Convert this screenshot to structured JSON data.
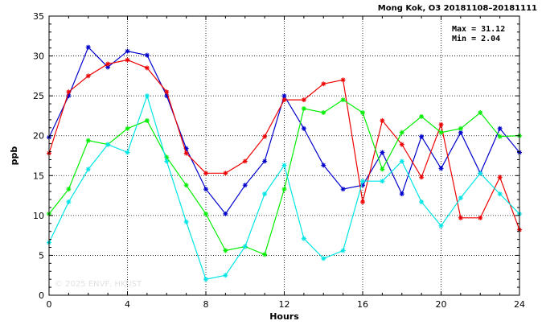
{
  "chart_data": {
    "type": "line",
    "title": "Mong Kok, O3 20181108–20181111",
    "xlabel": "Hours",
    "ylabel": "ppb",
    "xlim": [
      0,
      24
    ],
    "ylim": [
      0,
      35
    ],
    "x_ticks": [
      0,
      4,
      8,
      12,
      16,
      20,
      24
    ],
    "y_ticks": [
      0,
      5,
      10,
      15,
      20,
      25,
      30,
      35
    ],
    "grid": true,
    "stats": {
      "max_label": "Max = 31.12",
      "min_label": "Min =  2.04"
    },
    "watermark": "© 2025  ENVF, HKUST",
    "x": [
      0,
      1,
      2,
      3,
      4,
      5,
      6,
      7,
      8,
      9,
      10,
      11,
      12,
      13,
      14,
      15,
      16,
      17,
      18,
      19,
      20,
      21,
      22,
      23,
      24
    ],
    "series": [
      {
        "color": "#0000cc",
        "values": [
          19.8,
          25.0,
          31.1,
          28.6,
          30.6,
          30.1,
          25.0,
          18.4,
          13.3,
          10.2,
          13.8,
          16.8,
          25.0,
          20.9,
          16.3,
          13.3,
          13.8,
          17.9,
          12.7,
          19.9,
          15.9,
          20.4,
          15.3,
          20.9,
          17.9
        ]
      },
      {
        "color": "#ee0000",
        "values": [
          17.8,
          25.5,
          27.5,
          29.0,
          29.5,
          28.5,
          25.5,
          17.8,
          15.3,
          15.3,
          16.8,
          19.9,
          24.5,
          24.5,
          26.5,
          27.0,
          11.7,
          21.9,
          18.9,
          14.8,
          21.4,
          9.7,
          9.7,
          14.8,
          8.2
        ]
      },
      {
        "color": "#00ee00",
        "values": [
          10.2,
          13.3,
          19.4,
          18.9,
          20.9,
          21.9,
          17.3,
          13.8,
          10.2,
          5.6,
          6.1,
          5.1,
          13.3,
          23.4,
          22.9,
          24.5,
          22.9,
          15.8,
          20.4,
          22.4,
          20.4,
          20.9,
          22.9,
          19.9,
          20.0
        ]
      },
      {
        "color": "#00e5e5",
        "values": [
          6.6,
          11.7,
          15.8,
          18.9,
          17.9,
          25.0,
          16.8,
          9.2,
          2.0,
          2.5,
          6.1,
          12.7,
          16.3,
          7.1,
          4.6,
          5.6,
          14.3,
          14.3,
          16.8,
          11.7,
          8.7,
          12.2,
          15.3,
          12.7,
          10.2
        ]
      }
    ]
  }
}
